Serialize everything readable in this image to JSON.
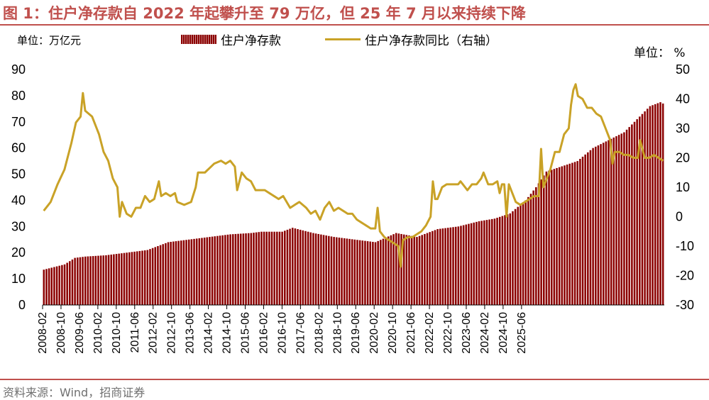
{
  "title": "图 1：住户净存款自 2022 年起攀升至 79 万亿，但 25 年 7 月以来持续下降",
  "unit_left": "单位：万亿元",
  "unit_right": "单位：  %",
  "source": "资料来源：Wind，招商证券",
  "colors": {
    "bar": "#8b0000",
    "line": "#c9a227",
    "accent": "#c0504d"
  },
  "chart_data": {
    "type": "bar+line",
    "title": "",
    "legend": {
      "position": "top",
      "entries": [
        "住户净存款",
        "住户净存款同比（右轴）"
      ]
    },
    "grid": false,
    "x_tick_labels": [
      "2008-02",
      "2008-10",
      "2009-06",
      "2010-02",
      "2010-10",
      "2011-06",
      "2012-02",
      "2012-10",
      "2013-06",
      "2014-02",
      "2014-10",
      "2015-06",
      "2016-02",
      "2016-10",
      "2017-06",
      "2018-02",
      "2018-10",
      "2019-06",
      "2020-02",
      "2020-10",
      "2021-06",
      "2022-02",
      "2022-10",
      "2023-06",
      "2024-02",
      "2024-10",
      "2025-06"
    ],
    "y_left": {
      "min": 0,
      "max": 90,
      "ticks": [
        0,
        10,
        20,
        30,
        40,
        50,
        60,
        70,
        80,
        90
      ]
    },
    "y_right": {
      "min": -30,
      "max": 50,
      "ticks": [
        -30,
        -20,
        -10,
        0,
        10,
        20,
        30,
        40,
        50
      ]
    },
    "x_start": "2008-02",
    "series": [
      {
        "name": "住户净存款",
        "type": "bar",
        "axis": "left",
        "anchors": [
          [
            0,
            13.5
          ],
          [
            8,
            15.5
          ],
          [
            12,
            18
          ],
          [
            16,
            18.5
          ],
          [
            24,
            19
          ],
          [
            32,
            20
          ],
          [
            40,
            21
          ],
          [
            48,
            24
          ],
          [
            56,
            25
          ],
          [
            64,
            26
          ],
          [
            72,
            27
          ],
          [
            80,
            27.5
          ],
          [
            84,
            28
          ],
          [
            92,
            28
          ],
          [
            96,
            29.5
          ],
          [
            104,
            27.5
          ],
          [
            112,
            26
          ],
          [
            120,
            25
          ],
          [
            128,
            24
          ],
          [
            136,
            27.5
          ],
          [
            144,
            26
          ],
          [
            152,
            29
          ],
          [
            160,
            30
          ],
          [
            168,
            32
          ],
          [
            174,
            33
          ],
          [
            180,
            35
          ],
          [
            186,
            40
          ],
          [
            190,
            45
          ],
          [
            194,
            51
          ],
          [
            200,
            53
          ],
          [
            206,
            55
          ],
          [
            212,
            60
          ],
          [
            218,
            63
          ],
          [
            224,
            66
          ],
          [
            230,
            72
          ],
          [
            234,
            76
          ],
          [
            238,
            77.5
          ],
          [
            239,
            77
          ]
        ]
      },
      {
        "name": "住户净存款同比（右轴）",
        "type": "line",
        "axis": "right",
        "anchors": [
          [
            0,
            2
          ],
          [
            3,
            5
          ],
          [
            6,
            11
          ],
          [
            9,
            16
          ],
          [
            12,
            25
          ],
          [
            14,
            32
          ],
          [
            16,
            34
          ],
          [
            17,
            42
          ],
          [
            18,
            36
          ],
          [
            21,
            34
          ],
          [
            24,
            28
          ],
          [
            26,
            22
          ],
          [
            28,
            19
          ],
          [
            30,
            13
          ],
          [
            32,
            10
          ],
          [
            33,
            0
          ],
          [
            34,
            5
          ],
          [
            36,
            1
          ],
          [
            38,
            0
          ],
          [
            40,
            3
          ],
          [
            42,
            3
          ],
          [
            44,
            7
          ],
          [
            46,
            5
          ],
          [
            48,
            6
          ],
          [
            50,
            12
          ],
          [
            51,
            7
          ],
          [
            53,
            8
          ],
          [
            55,
            7
          ],
          [
            57,
            8
          ],
          [
            58,
            5
          ],
          [
            61,
            4
          ],
          [
            64,
            5
          ],
          [
            66,
            10
          ],
          [
            67,
            15
          ],
          [
            70,
            15
          ],
          [
            74,
            18
          ],
          [
            77,
            19
          ],
          [
            79,
            18
          ],
          [
            81,
            19
          ],
          [
            83,
            17
          ],
          [
            84,
            9
          ],
          [
            86,
            15
          ],
          [
            88,
            13
          ],
          [
            90,
            12
          ],
          [
            92,
            9
          ],
          [
            96,
            9
          ],
          [
            98,
            8
          ],
          [
            100,
            7
          ],
          [
            102,
            6
          ],
          [
            104,
            7
          ],
          [
            107,
            3
          ],
          [
            109,
            4
          ],
          [
            111,
            5
          ],
          [
            114,
            3
          ],
          [
            116,
            1
          ],
          [
            118,
            2
          ],
          [
            120,
            -1
          ],
          [
            122,
            3
          ],
          [
            124,
            5
          ],
          [
            126,
            2
          ],
          [
            128,
            3
          ],
          [
            130,
            2
          ],
          [
            132,
            1
          ],
          [
            134,
            1
          ],
          [
            136,
            -1
          ],
          [
            138,
            -2
          ],
          [
            140,
            -3
          ],
          [
            142,
            -4
          ],
          [
            144,
            -4
          ],
          [
            145,
            3
          ],
          [
            146,
            -5
          ],
          [
            148,
            -7
          ],
          [
            150,
            -8
          ],
          [
            152,
            -9
          ],
          [
            154,
            -10
          ],
          [
            155,
            -17
          ],
          [
            156,
            -8
          ],
          [
            158,
            -7
          ],
          [
            160,
            -7
          ],
          [
            162,
            -6
          ],
          [
            164,
            -5
          ],
          [
            166,
            -3
          ],
          [
            168,
            0
          ],
          [
            169,
            12
          ],
          [
            170,
            6
          ],
          [
            171,
            6
          ],
          [
            173,
            10
          ],
          [
            175,
            11
          ],
          [
            178,
            11
          ],
          [
            180,
            11
          ],
          [
            181,
            12
          ],
          [
            183,
            10
          ],
          [
            184,
            9
          ],
          [
            186,
            11
          ],
          [
            188,
            11
          ],
          [
            190,
            13
          ],
          [
            191,
            15
          ],
          [
            193,
            11
          ],
          [
            195,
            11
          ],
          [
            197,
            12
          ],
          [
            198,
            8
          ],
          [
            199,
            11
          ],
          [
            200,
            11
          ],
          [
            201,
            0
          ],
          [
            202,
            11
          ],
          [
            203,
            9
          ],
          [
            205,
            5
          ],
          [
            207,
            4
          ],
          [
            209,
            5
          ],
          [
            211,
            6
          ],
          [
            213,
            7
          ],
          [
            215,
            7
          ],
          [
            216,
            23
          ],
          [
            217,
            10
          ],
          [
            218,
            12
          ],
          [
            220,
            16
          ],
          [
            222,
            22
          ],
          [
            224,
            22
          ],
          [
            226,
            28
          ],
          [
            228,
            30
          ],
          [
            229,
            38
          ],
          [
            230,
            43
          ],
          [
            231,
            45
          ],
          [
            232,
            41
          ],
          [
            234,
            40
          ],
          [
            236,
            37
          ],
          [
            238,
            37
          ],
          [
            240,
            35
          ],
          [
            242,
            34
          ],
          [
            244,
            30
          ],
          [
            246,
            26
          ],
          [
            247,
            18
          ],
          [
            248,
            22
          ],
          [
            250,
            22
          ],
          [
            252,
            21
          ],
          [
            254,
            21
          ],
          [
            256,
            20
          ],
          [
            258,
            20
          ],
          [
            259,
            26
          ],
          [
            261,
            20
          ],
          [
            263,
            20
          ],
          [
            265,
            21
          ],
          [
            267,
            20
          ],
          [
            269,
            19
          ]
        ]
      }
    ]
  }
}
